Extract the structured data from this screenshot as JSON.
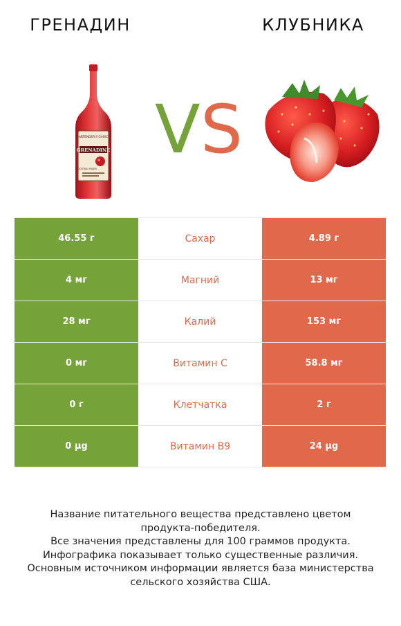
{
  "header": {
    "left_title": "ГРЕНАДИН",
    "right_title": "КЛУБНИКА",
    "vs_left": "V",
    "vs_right": "S"
  },
  "colors": {
    "winner_left": "#76a23a",
    "winner_right": "#e0694b"
  },
  "bottle_label": {
    "brand": "BARTENDER'S CHOICE",
    "name": "GRENADINE",
    "sub": "COCKTAIL MIXER"
  },
  "rows": [
    {
      "left": "46.55 г",
      "nutrient": "Сахар",
      "right": "4.89 г"
    },
    {
      "left": "4 мг",
      "nutrient": "Магний",
      "right": "13 мг"
    },
    {
      "left": "28 мг",
      "nutrient": "Калий",
      "right": "153 мг"
    },
    {
      "left": "0 мг",
      "nutrient": "Витамин C",
      "right": "58.8 мг"
    },
    {
      "left": "0 г",
      "nutrient": "Клетчатка",
      "right": "2 г"
    },
    {
      "left": "0 µg",
      "nutrient": "Витамин B9",
      "right": "24 µg"
    }
  ],
  "footer": {
    "line1": "Название питательного вещества представлено цветом",
    "line2": "продукта-победителя.",
    "line3": "Все значения представлены для 100 граммов продукта.",
    "line4": "Инфографика показывает только существенные различия.",
    "line5": "Основным источником информации является база министерства",
    "line6": "сельского хозяйства США."
  }
}
